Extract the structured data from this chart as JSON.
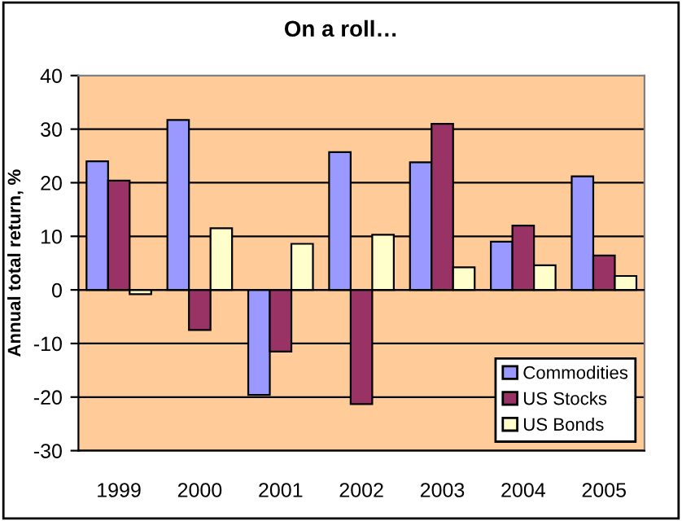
{
  "chart_data": {
    "type": "bar",
    "title": "On a roll…",
    "ylabel": "Annual total return, %",
    "categories": [
      "1999",
      "2000",
      "2001",
      "2002",
      "2003",
      "2004",
      "2005"
    ],
    "series": [
      {
        "name": "Commodities",
        "color": "#9999ff",
        "values": [
          24,
          31.7,
          -19.6,
          25.7,
          23.8,
          9,
          21.2
        ]
      },
      {
        "name": "US Stocks",
        "color": "#993366",
        "values": [
          20.4,
          -7.5,
          -11.5,
          -21.3,
          31,
          12,
          6.4
        ]
      },
      {
        "name": "US Bonds",
        "color": "#ffffcc",
        "values": [
          -0.8,
          11.5,
          8.6,
          10.3,
          4.2,
          4.6,
          2.6
        ]
      }
    ],
    "ylim": [
      -30,
      40
    ],
    "yticks": [
      -30,
      -20,
      -10,
      0,
      10,
      20,
      30,
      40
    ],
    "grid": "y",
    "legend": "bottom right"
  }
}
